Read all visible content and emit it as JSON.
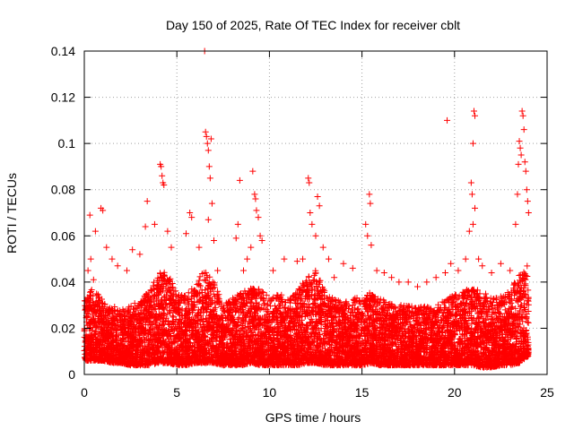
{
  "chart_data": {
    "type": "scatter",
    "title": "Day 150 of 2025, Rate Of TEC Index for receiver cblt",
    "xlabel": "GPS time / hours",
    "ylabel": "ROTI / TECUs",
    "xlim": [
      0,
      25
    ],
    "ylim": [
      0,
      0.14
    ],
    "xticks": [
      0,
      5,
      10,
      15,
      20,
      25
    ],
    "xtick_labels": [
      "0",
      "5",
      "10",
      "15",
      "20",
      "25"
    ],
    "yticks": [
      0,
      0.02,
      0.04,
      0.06,
      0.08,
      0.1,
      0.12,
      0.14
    ],
    "ytick_labels": [
      "0",
      "0.02",
      "0.04",
      "0.06",
      "0.08",
      "0.1",
      "0.12",
      "0.14"
    ],
    "grid": true,
    "marker": "+",
    "color": "#ff0000",
    "series": [
      {
        "name": "ROTI",
        "points": [
          [
            0.1,
            0.032
          ],
          [
            0.2,
            0.045
          ],
          [
            0.3,
            0.069
          ],
          [
            0.35,
            0.05
          ],
          [
            0.5,
            0.041
          ],
          [
            0.6,
            0.062
          ],
          [
            0.9,
            0.072
          ],
          [
            1.0,
            0.071
          ],
          [
            1.2,
            0.055
          ],
          [
            1.5,
            0.05
          ],
          [
            1.8,
            0.047
          ],
          [
            2.3,
            0.045
          ],
          [
            2.6,
            0.054
          ],
          [
            3.0,
            0.052
          ],
          [
            3.3,
            0.064
          ],
          [
            3.4,
            0.075
          ],
          [
            3.8,
            0.065
          ],
          [
            4.1,
            0.091
          ],
          [
            4.15,
            0.09
          ],
          [
            4.2,
            0.086
          ],
          [
            4.25,
            0.083
          ],
          [
            4.3,
            0.082
          ],
          [
            4.5,
            0.062
          ],
          [
            4.7,
            0.055
          ],
          [
            5.5,
            0.061
          ],
          [
            5.7,
            0.07
          ],
          [
            5.8,
            0.068
          ],
          [
            6.2,
            0.055
          ],
          [
            6.5,
            0.14
          ],
          [
            6.55,
            0.105
          ],
          [
            6.6,
            0.103
          ],
          [
            6.65,
            0.1
          ],
          [
            6.7,
            0.097
          ],
          [
            6.75,
            0.09
          ],
          [
            6.8,
            0.085
          ],
          [
            6.85,
            0.102
          ],
          [
            6.9,
            0.074
          ],
          [
            6.7,
            0.067
          ],
          [
            7.0,
            0.058
          ],
          [
            7.2,
            0.045
          ],
          [
            8.2,
            0.059
          ],
          [
            8.3,
            0.065
          ],
          [
            8.4,
            0.084
          ],
          [
            8.6,
            0.045
          ],
          [
            8.8,
            0.05
          ],
          [
            9.0,
            0.055
          ],
          [
            9.1,
            0.088
          ],
          [
            9.2,
            0.078
          ],
          [
            9.25,
            0.076
          ],
          [
            9.3,
            0.071
          ],
          [
            9.4,
            0.068
          ],
          [
            9.5,
            0.06
          ],
          [
            9.6,
            0.058
          ],
          [
            10.2,
            0.045
          ],
          [
            10.8,
            0.05
          ],
          [
            11.5,
            0.049
          ],
          [
            11.8,
            0.05
          ],
          [
            12.1,
            0.085
          ],
          [
            12.15,
            0.083
          ],
          [
            12.2,
            0.07
          ],
          [
            12.3,
            0.065
          ],
          [
            12.5,
            0.06
          ],
          [
            12.6,
            0.077
          ],
          [
            12.7,
            0.073
          ],
          [
            12.9,
            0.055
          ],
          [
            13.2,
            0.05
          ],
          [
            13.5,
            0.042
          ],
          [
            14.0,
            0.048
          ],
          [
            14.5,
            0.046
          ],
          [
            15.2,
            0.065
          ],
          [
            15.3,
            0.06
          ],
          [
            15.4,
            0.078
          ],
          [
            15.45,
            0.074
          ],
          [
            15.5,
            0.056
          ],
          [
            15.8,
            0.045
          ],
          [
            16.2,
            0.044
          ],
          [
            16.6,
            0.042
          ],
          [
            17.0,
            0.04
          ],
          [
            17.5,
            0.04
          ],
          [
            18.0,
            0.038
          ],
          [
            18.5,
            0.04
          ],
          [
            19.0,
            0.042
          ],
          [
            19.5,
            0.044
          ],
          [
            19.6,
            0.11
          ],
          [
            19.8,
            0.048
          ],
          [
            20.2,
            0.045
          ],
          [
            20.6,
            0.05
          ],
          [
            20.8,
            0.062
          ],
          [
            20.9,
            0.083
          ],
          [
            20.95,
            0.078
          ],
          [
            21.0,
            0.1
          ],
          [
            21.05,
            0.114
          ],
          [
            21.1,
            0.112
          ],
          [
            21.0,
            0.065
          ],
          [
            21.1,
            0.072
          ],
          [
            21.3,
            0.05
          ],
          [
            21.5,
            0.047
          ],
          [
            22.0,
            0.044
          ],
          [
            22.5,
            0.048
          ],
          [
            23.0,
            0.045
          ],
          [
            23.3,
            0.065
          ],
          [
            23.4,
            0.078
          ],
          [
            23.45,
            0.091
          ],
          [
            23.5,
            0.101
          ],
          [
            23.55,
            0.098
          ],
          [
            23.6,
            0.095
          ],
          [
            23.65,
            0.114
          ],
          [
            23.7,
            0.112
          ],
          [
            23.75,
            0.106
          ],
          [
            23.8,
            0.092
          ],
          [
            23.85,
            0.088
          ],
          [
            23.9,
            0.08
          ],
          [
            23.95,
            0.075
          ],
          [
            24.0,
            0.07
          ]
        ],
        "dense_band": [
          [
            0.0,
            0.006,
            0.032
          ],
          [
            0.5,
            0.006,
            0.038
          ],
          [
            1.0,
            0.006,
            0.032
          ],
          [
            1.5,
            0.005,
            0.03
          ],
          [
            2.0,
            0.005,
            0.028
          ],
          [
            2.5,
            0.004,
            0.03
          ],
          [
            3.0,
            0.004,
            0.032
          ],
          [
            3.5,
            0.004,
            0.036
          ],
          [
            4.0,
            0.005,
            0.044
          ],
          [
            4.5,
            0.005,
            0.045
          ],
          [
            5.0,
            0.004,
            0.035
          ],
          [
            5.5,
            0.004,
            0.034
          ],
          [
            6.0,
            0.005,
            0.04
          ],
          [
            6.5,
            0.005,
            0.045
          ],
          [
            7.0,
            0.005,
            0.04
          ],
          [
            7.5,
            0.004,
            0.03
          ],
          [
            8.0,
            0.004,
            0.033
          ],
          [
            8.5,
            0.004,
            0.036
          ],
          [
            9.0,
            0.005,
            0.038
          ],
          [
            9.5,
            0.004,
            0.037
          ],
          [
            10.0,
            0.004,
            0.034
          ],
          [
            10.5,
            0.004,
            0.035
          ],
          [
            11.0,
            0.004,
            0.033
          ],
          [
            11.5,
            0.004,
            0.036
          ],
          [
            12.0,
            0.005,
            0.042
          ],
          [
            12.5,
            0.005,
            0.045
          ],
          [
            13.0,
            0.004,
            0.036
          ],
          [
            13.5,
            0.004,
            0.033
          ],
          [
            14.0,
            0.004,
            0.032
          ],
          [
            14.5,
            0.004,
            0.033
          ],
          [
            15.0,
            0.004,
            0.034
          ],
          [
            15.5,
            0.005,
            0.036
          ],
          [
            16.0,
            0.004,
            0.033
          ],
          [
            16.5,
            0.004,
            0.032
          ],
          [
            17.0,
            0.004,
            0.03
          ],
          [
            17.5,
            0.004,
            0.03
          ],
          [
            18.0,
            0.004,
            0.029
          ],
          [
            18.5,
            0.004,
            0.03
          ],
          [
            19.0,
            0.004,
            0.03
          ],
          [
            19.5,
            0.004,
            0.032
          ],
          [
            20.0,
            0.004,
            0.035
          ],
          [
            20.5,
            0.004,
            0.036
          ],
          [
            21.0,
            0.004,
            0.038
          ],
          [
            21.5,
            0.003,
            0.036
          ],
          [
            22.0,
            0.003,
            0.033
          ],
          [
            22.5,
            0.004,
            0.034
          ],
          [
            23.0,
            0.004,
            0.036
          ],
          [
            23.5,
            0.005,
            0.045
          ],
          [
            24.0,
            0.008,
            0.048
          ]
        ]
      }
    ]
  }
}
